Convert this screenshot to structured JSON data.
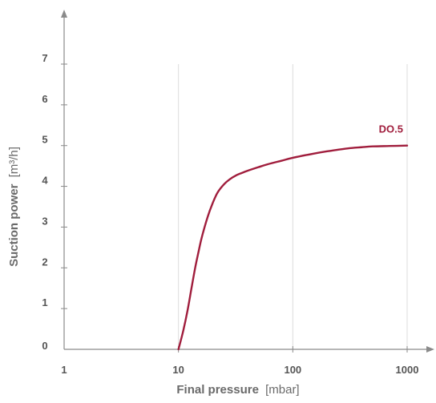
{
  "chart_data": {
    "type": "line",
    "title": "",
    "xlabel": {
      "main": "Final pressure",
      "unit": "[mbar]"
    },
    "ylabel": {
      "main": "Suction power",
      "unit": "[m³/h]"
    },
    "x_scale": "log",
    "xlim": [
      1,
      1000
    ],
    "ylim": [
      0,
      7
    ],
    "x_ticks": [
      1,
      10,
      100,
      1000
    ],
    "x_tick_labels": [
      "1",
      "10",
      "100",
      "1000"
    ],
    "y_ticks": [
      0,
      1,
      2,
      3,
      4,
      5,
      6,
      7
    ],
    "y_tick_labels": [
      "0",
      "1",
      "2",
      "3",
      "4",
      "5",
      "6",
      "7"
    ],
    "grid": "vertical lines at x ticks",
    "legend": "none",
    "series": [
      {
        "name": "DO.5",
        "color": "#a01d3c",
        "x": [
          10,
          11,
          12,
          13,
          14,
          15,
          16,
          18,
          20,
          22,
          25,
          28,
          32,
          36,
          40,
          50,
          60,
          80,
          100,
          150,
          200,
          300,
          400,
          500,
          700,
          1000
        ],
        "y": [
          0,
          0.45,
          0.95,
          1.5,
          2.0,
          2.4,
          2.75,
          3.25,
          3.6,
          3.85,
          4.05,
          4.17,
          4.27,
          4.33,
          4.38,
          4.47,
          4.54,
          4.63,
          4.7,
          4.8,
          4.86,
          4.93,
          4.96,
          4.98,
          4.99,
          5.0
        ]
      }
    ]
  }
}
